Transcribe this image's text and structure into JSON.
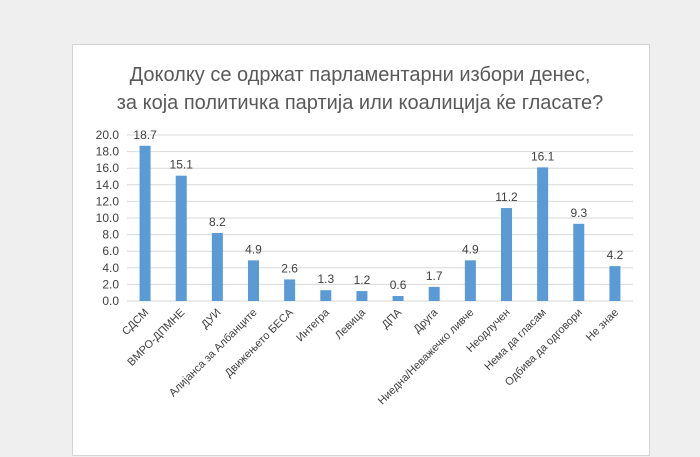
{
  "chart_data": {
    "type": "bar",
    "title_lines": [
      "Доколку се одржат парламентарни избори денес,",
      "за која политичка партија или коалиција ќе гласате?"
    ],
    "categories": [
      "СДСМ",
      "ВМРО-ДПМНЕ",
      "ДУИ",
      "Алијанса за Албанците",
      "Движењето БЕСА",
      "Интегра",
      "Левица",
      "ДПА",
      "Друга",
      "Ниедна/Неважечко ливче",
      "Неодлучен",
      "Нема да гласам",
      "Одбива да одговори",
      "Не знае"
    ],
    "values": [
      18.7,
      15.1,
      8.2,
      4.9,
      2.6,
      1.3,
      1.2,
      0.6,
      1.7,
      4.9,
      11.2,
      16.1,
      9.3,
      4.2
    ],
    "value_labels": [
      "18.7",
      "15.1",
      "8.2",
      "4.9",
      "2.6",
      "1.3",
      "1.2",
      "0.6",
      "1.7",
      "4.9",
      "11.2",
      "16.1",
      "9.3",
      "4.2"
    ],
    "y_ticks": [
      "0.0",
      "2.0",
      "4.0",
      "6.0",
      "8.0",
      "10.0",
      "12.0",
      "14.0",
      "16.0",
      "18.0",
      "20.0"
    ],
    "ylim": [
      0,
      20
    ],
    "grid": true,
    "legend": "none",
    "bar_color": "#5b9bd5",
    "grid_color": "#d9d9d9"
  }
}
